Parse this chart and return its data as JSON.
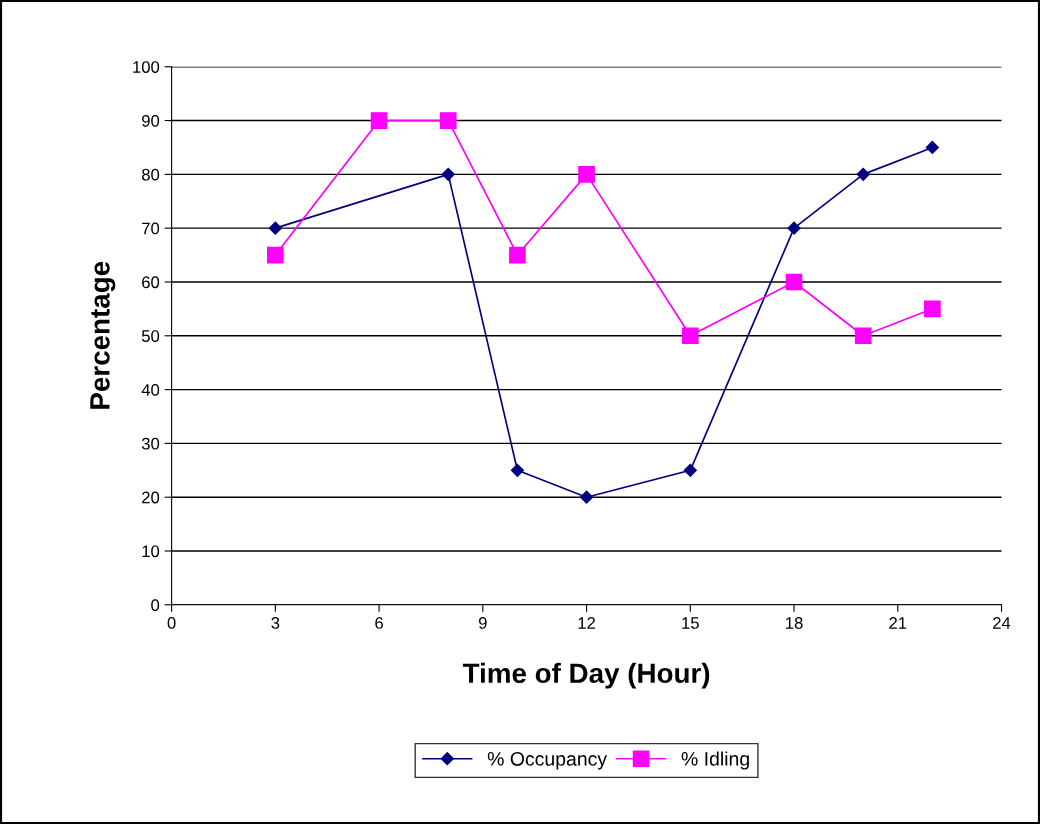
{
  "chart_data": {
    "type": "line",
    "xlabel": "Time of Day (Hour)",
    "ylabel": "Percentage",
    "series": [
      {
        "name": "% Occupancy",
        "color": "#000080",
        "marker": "diamond",
        "x": [
          3,
          8,
          10,
          12,
          15,
          18,
          20,
          22
        ],
        "values": [
          70,
          80,
          25,
          20,
          25,
          70,
          80,
          85
        ]
      },
      {
        "name": "% Idling",
        "color": "#ff00ff",
        "marker": "square",
        "x": [
          3,
          6,
          8,
          10,
          12,
          15,
          18,
          20,
          22
        ],
        "values": [
          65,
          90,
          90,
          65,
          80,
          50,
          60,
          50,
          55
        ]
      }
    ],
    "xlim": [
      0,
      24
    ],
    "xticks": [
      0,
      3,
      6,
      9,
      12,
      15,
      18,
      21,
      24
    ],
    "ylim": [
      0,
      100
    ],
    "yticks": [
      0,
      10,
      20,
      30,
      40,
      50,
      60,
      70,
      80,
      90,
      100
    ],
    "grid": "y",
    "legend": "bottom",
    "line_style": "solid"
  }
}
